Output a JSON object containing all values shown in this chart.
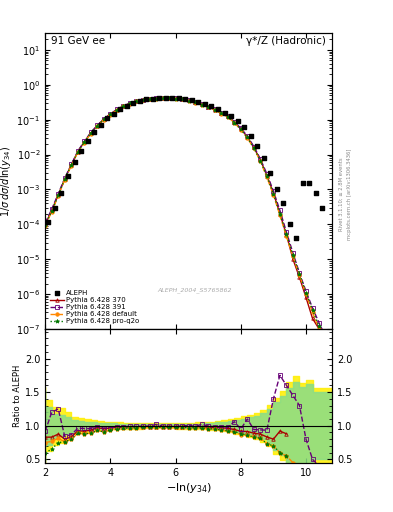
{
  "title_left": "91 GeV ee",
  "title_right": "γ*/Z (Hadronic)",
  "ylabel_main": "1/σ dσ/dln(y_{34})",
  "ylabel_ratio": "Ratio to ALEPH",
  "xlabel": "-ln(y_{34})",
  "xlim": [
    2,
    10.8
  ],
  "ylim_main": [
    1e-07,
    30
  ],
  "ylim_ratio": [
    0.44,
    2.44
  ],
  "annotation": "ALEPH_2004_S5765862",
  "right_label1": "Rivet 3.1.10; ≥ 2.8M events",
  "right_label2": "mcplots.cern.ch [arXiv:1306.3436]",
  "aleph_x": [
    2.1,
    2.3,
    2.5,
    2.7,
    2.9,
    3.1,
    3.3,
    3.5,
    3.7,
    3.9,
    4.1,
    4.3,
    4.5,
    4.7,
    4.9,
    5.1,
    5.3,
    5.5,
    5.7,
    5.9,
    6.1,
    6.3,
    6.5,
    6.7,
    6.9,
    7.1,
    7.3,
    7.5,
    7.7,
    7.9,
    8.1,
    8.3,
    8.5,
    8.7,
    8.9,
    9.1,
    9.3,
    9.5,
    9.7,
    9.9,
    10.1,
    10.3,
    10.5
  ],
  "aleph_y": [
    0.00012,
    0.0003,
    0.0008,
    0.0025,
    0.006,
    0.013,
    0.025,
    0.045,
    0.07,
    0.11,
    0.15,
    0.2,
    0.25,
    0.3,
    0.35,
    0.38,
    0.4,
    0.41,
    0.42,
    0.42,
    0.41,
    0.39,
    0.36,
    0.32,
    0.28,
    0.24,
    0.2,
    0.16,
    0.13,
    0.09,
    0.06,
    0.035,
    0.018,
    0.008,
    0.003,
    0.001,
    0.0004,
    0.0001,
    4e-05,
    0.0015,
    0.0015,
    0.0008,
    0.0003
  ],
  "pythia370_x": [
    2.0,
    2.2,
    2.4,
    2.6,
    2.8,
    3.0,
    3.2,
    3.4,
    3.6,
    3.8,
    4.0,
    4.2,
    4.4,
    4.6,
    4.8,
    5.0,
    5.2,
    5.4,
    5.6,
    5.8,
    6.0,
    6.2,
    6.4,
    6.6,
    6.8,
    7.0,
    7.2,
    7.4,
    7.6,
    7.8,
    8.0,
    8.2,
    8.4,
    8.6,
    8.8,
    9.0,
    9.2,
    9.4,
    9.6,
    9.8,
    10.0,
    10.2,
    10.4,
    10.6
  ],
  "pythia370_y": [
    0.0001,
    0.00025,
    0.0007,
    0.002,
    0.005,
    0.012,
    0.023,
    0.042,
    0.068,
    0.105,
    0.145,
    0.195,
    0.245,
    0.295,
    0.345,
    0.375,
    0.395,
    0.405,
    0.415,
    0.415,
    0.405,
    0.385,
    0.355,
    0.315,
    0.275,
    0.235,
    0.195,
    0.155,
    0.125,
    0.085,
    0.055,
    0.032,
    0.016,
    0.007,
    0.0025,
    0.0008,
    0.0002,
    5e-05,
    1e-05,
    3e-06,
    8e-07,
    2e-07,
    1e-07,
    5e-08
  ],
  "pythia391_x": [
    2.0,
    2.2,
    2.4,
    2.6,
    2.8,
    3.0,
    3.2,
    3.4,
    3.6,
    3.8,
    4.0,
    4.2,
    4.4,
    4.6,
    4.8,
    5.0,
    5.2,
    5.4,
    5.6,
    5.8,
    6.0,
    6.2,
    6.4,
    6.6,
    6.8,
    7.0,
    7.2,
    7.4,
    7.6,
    7.8,
    8.0,
    8.2,
    8.4,
    8.6,
    8.8,
    9.0,
    9.2,
    9.4,
    9.6,
    9.8,
    10.0,
    10.2,
    10.4,
    10.6
  ],
  "pythia391_y": [
    0.00011,
    0.00027,
    0.00075,
    0.0021,
    0.0052,
    0.0125,
    0.024,
    0.043,
    0.069,
    0.106,
    0.146,
    0.196,
    0.247,
    0.297,
    0.347,
    0.377,
    0.397,
    0.408,
    0.418,
    0.418,
    0.407,
    0.387,
    0.357,
    0.317,
    0.277,
    0.237,
    0.197,
    0.157,
    0.127,
    0.087,
    0.057,
    0.034,
    0.017,
    0.0075,
    0.0028,
    0.0009,
    0.00025,
    6e-05,
    1.5e-05,
    4e-06,
    1.2e-06,
    4e-07,
    1.5e-07,
    6e-08
  ],
  "pythia_def_x": [
    2.0,
    2.2,
    2.4,
    2.6,
    2.8,
    3.0,
    3.2,
    3.4,
    3.6,
    3.8,
    4.0,
    4.2,
    4.4,
    4.6,
    4.8,
    5.0,
    5.2,
    5.4,
    5.6,
    5.8,
    6.0,
    6.2,
    6.4,
    6.6,
    6.8,
    7.0,
    7.2,
    7.4,
    7.6,
    7.8,
    8.0,
    8.2,
    8.4,
    8.6,
    8.8,
    9.0,
    9.2,
    9.4,
    9.6,
    9.8,
    10.0,
    10.2,
    10.4,
    10.6
  ],
  "pythia_def_y": [
    9e-05,
    0.00023,
    0.00065,
    0.0019,
    0.0048,
    0.0115,
    0.022,
    0.04,
    0.065,
    0.1,
    0.14,
    0.19,
    0.24,
    0.29,
    0.34,
    0.37,
    0.39,
    0.4,
    0.41,
    0.41,
    0.4,
    0.38,
    0.35,
    0.31,
    0.27,
    0.23,
    0.19,
    0.15,
    0.12,
    0.082,
    0.052,
    0.03,
    0.015,
    0.0065,
    0.0022,
    0.0007,
    0.00018,
    4.5e-05,
    1.2e-05,
    3.5e-06,
    1e-06,
    3e-07,
    1e-07,
    4e-08
  ],
  "pythia_proq2o_x": [
    2.0,
    2.2,
    2.4,
    2.6,
    2.8,
    3.0,
    3.2,
    3.4,
    3.6,
    3.8,
    4.0,
    4.2,
    4.4,
    4.6,
    4.8,
    5.0,
    5.2,
    5.4,
    5.6,
    5.8,
    6.0,
    6.2,
    6.4,
    6.6,
    6.8,
    7.0,
    7.2,
    7.4,
    7.6,
    7.8,
    8.0,
    8.2,
    8.4,
    8.6,
    8.8,
    9.0,
    9.2,
    9.4,
    9.6,
    9.8,
    10.0,
    10.2,
    10.4,
    10.6
  ],
  "pythia_proq2o_y": [
    9.5e-05,
    0.00024,
    0.00068,
    0.002,
    0.005,
    0.012,
    0.023,
    0.041,
    0.067,
    0.103,
    0.143,
    0.193,
    0.243,
    0.293,
    0.343,
    0.373,
    0.393,
    0.403,
    0.413,
    0.413,
    0.402,
    0.382,
    0.352,
    0.312,
    0.272,
    0.232,
    0.192,
    0.152,
    0.122,
    0.083,
    0.053,
    0.031,
    0.0155,
    0.0067,
    0.0024,
    0.00075,
    0.0002,
    5.2e-05,
    1.3e-05,
    3.8e-06,
    1.1e-06,
    3.5e-07,
    1.2e-07,
    5e-08
  ],
  "color_aleph": "#000000",
  "color_370": "#aa0000",
  "color_391": "#660077",
  "color_default": "#ff8800",
  "color_proq2o": "#007700",
  "ratio_370_x": [
    2.0,
    2.2,
    2.4,
    2.6,
    2.8,
    3.0,
    3.2,
    3.4,
    3.6,
    3.8,
    4.0,
    4.2,
    4.4,
    4.6,
    4.8,
    5.0,
    5.2,
    5.4,
    5.6,
    5.8,
    6.0,
    6.2,
    6.4,
    6.6,
    6.8,
    7.0,
    7.2,
    7.4,
    7.6,
    7.8,
    8.0,
    8.2,
    8.4,
    8.6,
    8.8,
    9.0,
    9.2,
    9.4
  ],
  "ratio_370_y": [
    0.83,
    0.83,
    0.875,
    0.8,
    0.833,
    0.923,
    0.92,
    0.933,
    0.971,
    0.955,
    0.967,
    0.975,
    0.98,
    0.983,
    0.986,
    0.987,
    0.988,
    0.988,
    0.988,
    0.988,
    0.988,
    0.987,
    0.986,
    0.984,
    0.982,
    0.979,
    0.975,
    0.969,
    0.962,
    0.944,
    0.917,
    0.914,
    0.889,
    0.875,
    0.833,
    0.8,
    0.92,
    0.88
  ],
  "ratio_391_x": [
    2.0,
    2.2,
    2.4,
    2.6,
    2.8,
    3.0,
    3.2,
    3.4,
    3.6,
    3.8,
    4.0,
    4.2,
    4.4,
    4.6,
    4.8,
    5.0,
    5.2,
    5.4,
    5.6,
    5.8,
    6.0,
    6.2,
    6.4,
    6.6,
    6.8,
    7.0,
    7.2,
    7.4,
    7.6,
    7.8,
    8.0,
    8.2,
    8.4,
    8.6,
    8.8,
    9.0,
    9.2,
    9.4,
    9.6,
    9.8,
    10.0,
    10.2,
    10.4
  ],
  "ratio_391_y": [
    0.917,
    1.2,
    1.25,
    0.84,
    0.867,
    0.962,
    0.96,
    0.956,
    0.986,
    0.964,
    0.973,
    0.98,
    0.988,
    0.99,
    0.991,
    0.992,
    0.993,
    1.02,
    0.995,
    0.995,
    0.993,
    1.0,
    1.003,
    0.991,
    1.02,
    0.996,
    0.985,
    0.981,
    0.977,
    1.06,
    0.95,
    1.1,
    0.944,
    0.938,
    0.933,
    1.4,
    1.75,
    1.6,
    1.45,
    1.3,
    0.8,
    0.5,
    0.4
  ],
  "ratio_def_x": [
    2.0,
    2.2,
    2.4,
    2.6,
    2.8,
    3.0,
    3.2,
    3.4,
    3.6,
    3.8,
    4.0,
    4.2,
    4.4,
    4.6,
    4.8,
    5.0,
    5.2,
    5.4,
    5.6,
    5.8,
    6.0,
    6.2,
    6.4,
    6.6,
    6.8,
    7.0,
    7.2,
    7.4,
    7.6,
    7.8,
    8.0,
    8.2,
    8.4,
    8.6,
    8.8,
    9.0,
    9.2,
    9.4,
    9.6
  ],
  "ratio_def_y": [
    0.75,
    0.767,
    0.813,
    0.76,
    0.8,
    0.885,
    0.88,
    0.889,
    0.929,
    0.909,
    0.933,
    0.95,
    0.96,
    0.967,
    0.971,
    0.974,
    0.975,
    0.976,
    0.976,
    0.976,
    0.976,
    0.974,
    0.972,
    0.969,
    0.964,
    0.958,
    0.95,
    0.938,
    0.923,
    0.911,
    0.867,
    0.857,
    0.833,
    0.813,
    0.733,
    0.7,
    0.6,
    0.55,
    0.45
  ],
  "ratio_proq2o_x": [
    2.0,
    2.2,
    2.4,
    2.6,
    2.8,
    3.0,
    3.2,
    3.4,
    3.6,
    3.8,
    4.0,
    4.2,
    4.4,
    4.6,
    4.8,
    5.0,
    5.2,
    5.4,
    5.6,
    5.8,
    6.0,
    6.2,
    6.4,
    6.6,
    6.8,
    7.0,
    7.2,
    7.4,
    7.6,
    7.8,
    8.0,
    8.2,
    8.4,
    8.6,
    8.8,
    9.0,
    9.2,
    9.4
  ],
  "ratio_proq2o_y": [
    0.6,
    0.65,
    0.75,
    0.76,
    0.8,
    0.885,
    0.88,
    0.889,
    0.929,
    0.909,
    0.933,
    0.95,
    0.96,
    0.967,
    0.971,
    0.974,
    0.975,
    0.976,
    0.976,
    0.976,
    0.976,
    0.974,
    0.972,
    0.969,
    0.964,
    0.958,
    0.95,
    0.938,
    0.923,
    0.911,
    0.883,
    0.857,
    0.833,
    0.813,
    0.733,
    0.7,
    0.6,
    0.55
  ],
  "band_green_x": [
    2.0,
    2.2,
    2.4,
    2.6,
    2.8,
    3.0,
    3.2,
    3.4,
    3.6,
    3.8,
    4.0,
    4.2,
    4.4,
    4.6,
    4.8,
    5.0,
    5.2,
    5.4,
    5.6,
    5.8,
    6.0,
    6.2,
    6.4,
    6.6,
    6.8,
    7.0,
    7.2,
    7.4,
    7.6,
    7.8,
    8.0,
    8.2,
    8.4,
    8.6,
    8.8,
    9.0,
    9.2,
    9.4,
    9.6,
    9.8,
    10.0,
    10.2,
    10.4,
    10.6,
    10.8
  ],
  "band_green_low": [
    0.47,
    0.72,
    0.82,
    0.84,
    0.87,
    0.91,
    0.93,
    0.94,
    0.95,
    0.955,
    0.96,
    0.965,
    0.968,
    0.97,
    0.972,
    0.974,
    0.975,
    0.975,
    0.975,
    0.975,
    0.975,
    0.974,
    0.972,
    0.97,
    0.967,
    0.963,
    0.958,
    0.95,
    0.94,
    0.928,
    0.91,
    0.895,
    0.872,
    0.848,
    0.808,
    0.745,
    0.645,
    0.56,
    0.44,
    0.35,
    0.43,
    0.38,
    0.5,
    0.5,
    0.5
  ],
  "band_green_high": [
    1.53,
    1.28,
    1.18,
    1.16,
    1.13,
    1.09,
    1.07,
    1.06,
    1.05,
    1.045,
    1.04,
    1.035,
    1.032,
    1.03,
    1.028,
    1.026,
    1.025,
    1.025,
    1.025,
    1.025,
    1.025,
    1.026,
    1.028,
    1.03,
    1.033,
    1.037,
    1.042,
    1.05,
    1.06,
    1.072,
    1.09,
    1.105,
    1.128,
    1.152,
    1.192,
    1.255,
    1.355,
    1.44,
    1.56,
    1.65,
    1.57,
    1.62,
    1.5,
    1.5,
    1.5
  ],
  "band_yellow_x": [
    2.0,
    2.2,
    2.4,
    2.6,
    2.8,
    3.0,
    3.2,
    3.4,
    3.6,
    3.8,
    4.0,
    4.2,
    4.4,
    4.6,
    4.8,
    5.0,
    5.2,
    5.4,
    5.6,
    5.8,
    6.0,
    6.2,
    6.4,
    6.6,
    6.8,
    7.0,
    7.2,
    7.4,
    7.6,
    7.8,
    8.0,
    8.2,
    8.4,
    8.6,
    8.8,
    9.0,
    9.2,
    9.4,
    9.6,
    9.8,
    10.0,
    10.2,
    10.4,
    10.6,
    10.8
  ],
  "band_yellow_low": [
    0.42,
    0.62,
    0.72,
    0.74,
    0.79,
    0.87,
    0.89,
    0.905,
    0.92,
    0.93,
    0.94,
    0.945,
    0.95,
    0.953,
    0.956,
    0.958,
    0.959,
    0.959,
    0.959,
    0.959,
    0.959,
    0.958,
    0.956,
    0.953,
    0.95,
    0.946,
    0.94,
    0.93,
    0.917,
    0.902,
    0.88,
    0.862,
    0.834,
    0.806,
    0.76,
    0.692,
    0.58,
    0.49,
    0.355,
    0.26,
    0.37,
    0.32,
    0.44,
    0.44,
    0.44
  ],
  "band_yellow_high": [
    1.58,
    1.38,
    1.28,
    1.26,
    1.21,
    1.13,
    1.11,
    1.095,
    1.08,
    1.07,
    1.06,
    1.055,
    1.05,
    1.047,
    1.044,
    1.042,
    1.041,
    1.041,
    1.041,
    1.041,
    1.041,
    1.042,
    1.044,
    1.047,
    1.05,
    1.054,
    1.06,
    1.07,
    1.083,
    1.098,
    1.12,
    1.138,
    1.166,
    1.194,
    1.24,
    1.308,
    1.42,
    1.51,
    1.645,
    1.74,
    1.63,
    1.68,
    1.56,
    1.56,
    1.56
  ]
}
